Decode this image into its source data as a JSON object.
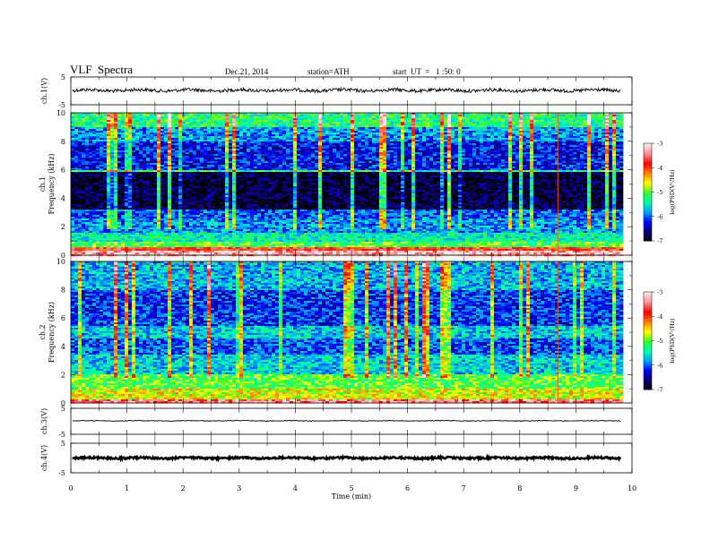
{
  "header": {
    "title": "VLF  Spectra",
    "date": "Dec.21, 2014",
    "station": "station=ATH",
    "start": "start  UT  =   1 :50: 0"
  },
  "chart_data": [
    {
      "type": "line",
      "name": "ch1-timeseries",
      "ylabel": "ch.1(V)",
      "ylim": [
        -5,
        5
      ],
      "yticks": [
        "5",
        "-5"
      ],
      "xlim": [
        0,
        10
      ],
      "trace_center": 0.2,
      "trace_amplitude": 0.6
    },
    {
      "type": "heatmap",
      "name": "ch1-spectrogram",
      "ylabel": "ch.1",
      "ylabel2": "Frequency  (kHz)",
      "ylim": [
        0,
        10
      ],
      "yticks": [
        "0",
        "2",
        "4",
        "6",
        "8",
        "10"
      ],
      "xlim": [
        0,
        10
      ],
      "data_end_min": 9.8,
      "colorbar": {
        "label": "log(PSD(V²/Hz)",
        "range": [
          -7,
          -3
        ],
        "ticks": [
          "-3",
          "-4",
          "-5",
          "-6",
          "-7"
        ]
      },
      "bands_khz": [
        {
          "lo": 0.0,
          "hi": 0.3,
          "level": -3.2
        },
        {
          "lo": 0.3,
          "hi": 0.6,
          "level": -3.8
        },
        {
          "lo": 0.6,
          "hi": 1.0,
          "level": -5.0
        },
        {
          "lo": 1.0,
          "hi": 1.6,
          "level": -5.4
        },
        {
          "lo": 1.6,
          "hi": 2.6,
          "level": -5.8
        },
        {
          "lo": 2.6,
          "hi": 3.2,
          "level": -6.0
        },
        {
          "lo": 3.2,
          "hi": 5.8,
          "level": -6.8
        },
        {
          "lo": 5.8,
          "hi": 6.0,
          "level": -5.2
        },
        {
          "lo": 6.0,
          "hi": 8.0,
          "level": -6.2
        },
        {
          "lo": 8.0,
          "hi": 9.0,
          "level": -5.8
        },
        {
          "lo": 9.0,
          "hi": 10.0,
          "level": -5.2
        }
      ]
    },
    {
      "type": "heatmap",
      "name": "ch2-spectrogram",
      "ylabel": "ch.2",
      "ylabel2": "Frequency  (kHz)",
      "ylim": [
        0,
        10
      ],
      "yticks": [
        "0",
        "2",
        "4",
        "6",
        "8",
        "10"
      ],
      "xlim": [
        0,
        10
      ],
      "data_end_min": 9.8,
      "colorbar": {
        "label": "log(PSD(V²/Hz)",
        "range": [
          -7,
          -3
        ],
        "ticks": [
          "-3",
          "-4",
          "-5",
          "-6",
          "-7"
        ]
      },
      "bands_khz": [
        {
          "lo": 0.0,
          "hi": 0.3,
          "level": -3.4
        },
        {
          "lo": 0.3,
          "hi": 1.0,
          "level": -4.6
        },
        {
          "lo": 1.0,
          "hi": 2.0,
          "level": -5.0
        },
        {
          "lo": 2.0,
          "hi": 3.4,
          "level": -5.6
        },
        {
          "lo": 3.4,
          "hi": 4.6,
          "level": -6.0
        },
        {
          "lo": 4.6,
          "hi": 5.4,
          "level": -5.6
        },
        {
          "lo": 5.4,
          "hi": 8.0,
          "level": -6.1
        },
        {
          "lo": 8.0,
          "hi": 10.0,
          "level": -5.7
        }
      ]
    },
    {
      "type": "line",
      "name": "ch3-timeseries",
      "ylabel": "ch.3(V)",
      "ylim": [
        -5,
        5
      ],
      "yticks": [
        "5",
        "-5"
      ],
      "xlim": [
        0,
        10
      ],
      "trace_center": 0.2,
      "trace_amplitude": 0.15
    },
    {
      "type": "line",
      "name": "ch4-timeseries",
      "ylabel": "ch.4(V)",
      "ylim": [
        -5,
        5
      ],
      "yticks": [
        "5",
        "-5"
      ],
      "xlim": [
        0,
        10
      ],
      "trace_center": 0.0,
      "trace_amplitude": 0.35
    }
  ],
  "xaxis": {
    "label": "Time  (min)",
    "ticks": [
      "0",
      "1",
      "2",
      "3",
      "4",
      "5",
      "6",
      "7",
      "8",
      "9",
      "10"
    ]
  },
  "colors": {
    "background": "#ffffff",
    "axes": "#000000",
    "colormap": [
      "#000000",
      "#0a0070",
      "#0000ff",
      "#00a0ff",
      "#00ffb0",
      "#30ff30",
      "#ffff00",
      "#ff8000",
      "#ff0000",
      "#ff9090",
      "#ffe8e8"
    ]
  }
}
